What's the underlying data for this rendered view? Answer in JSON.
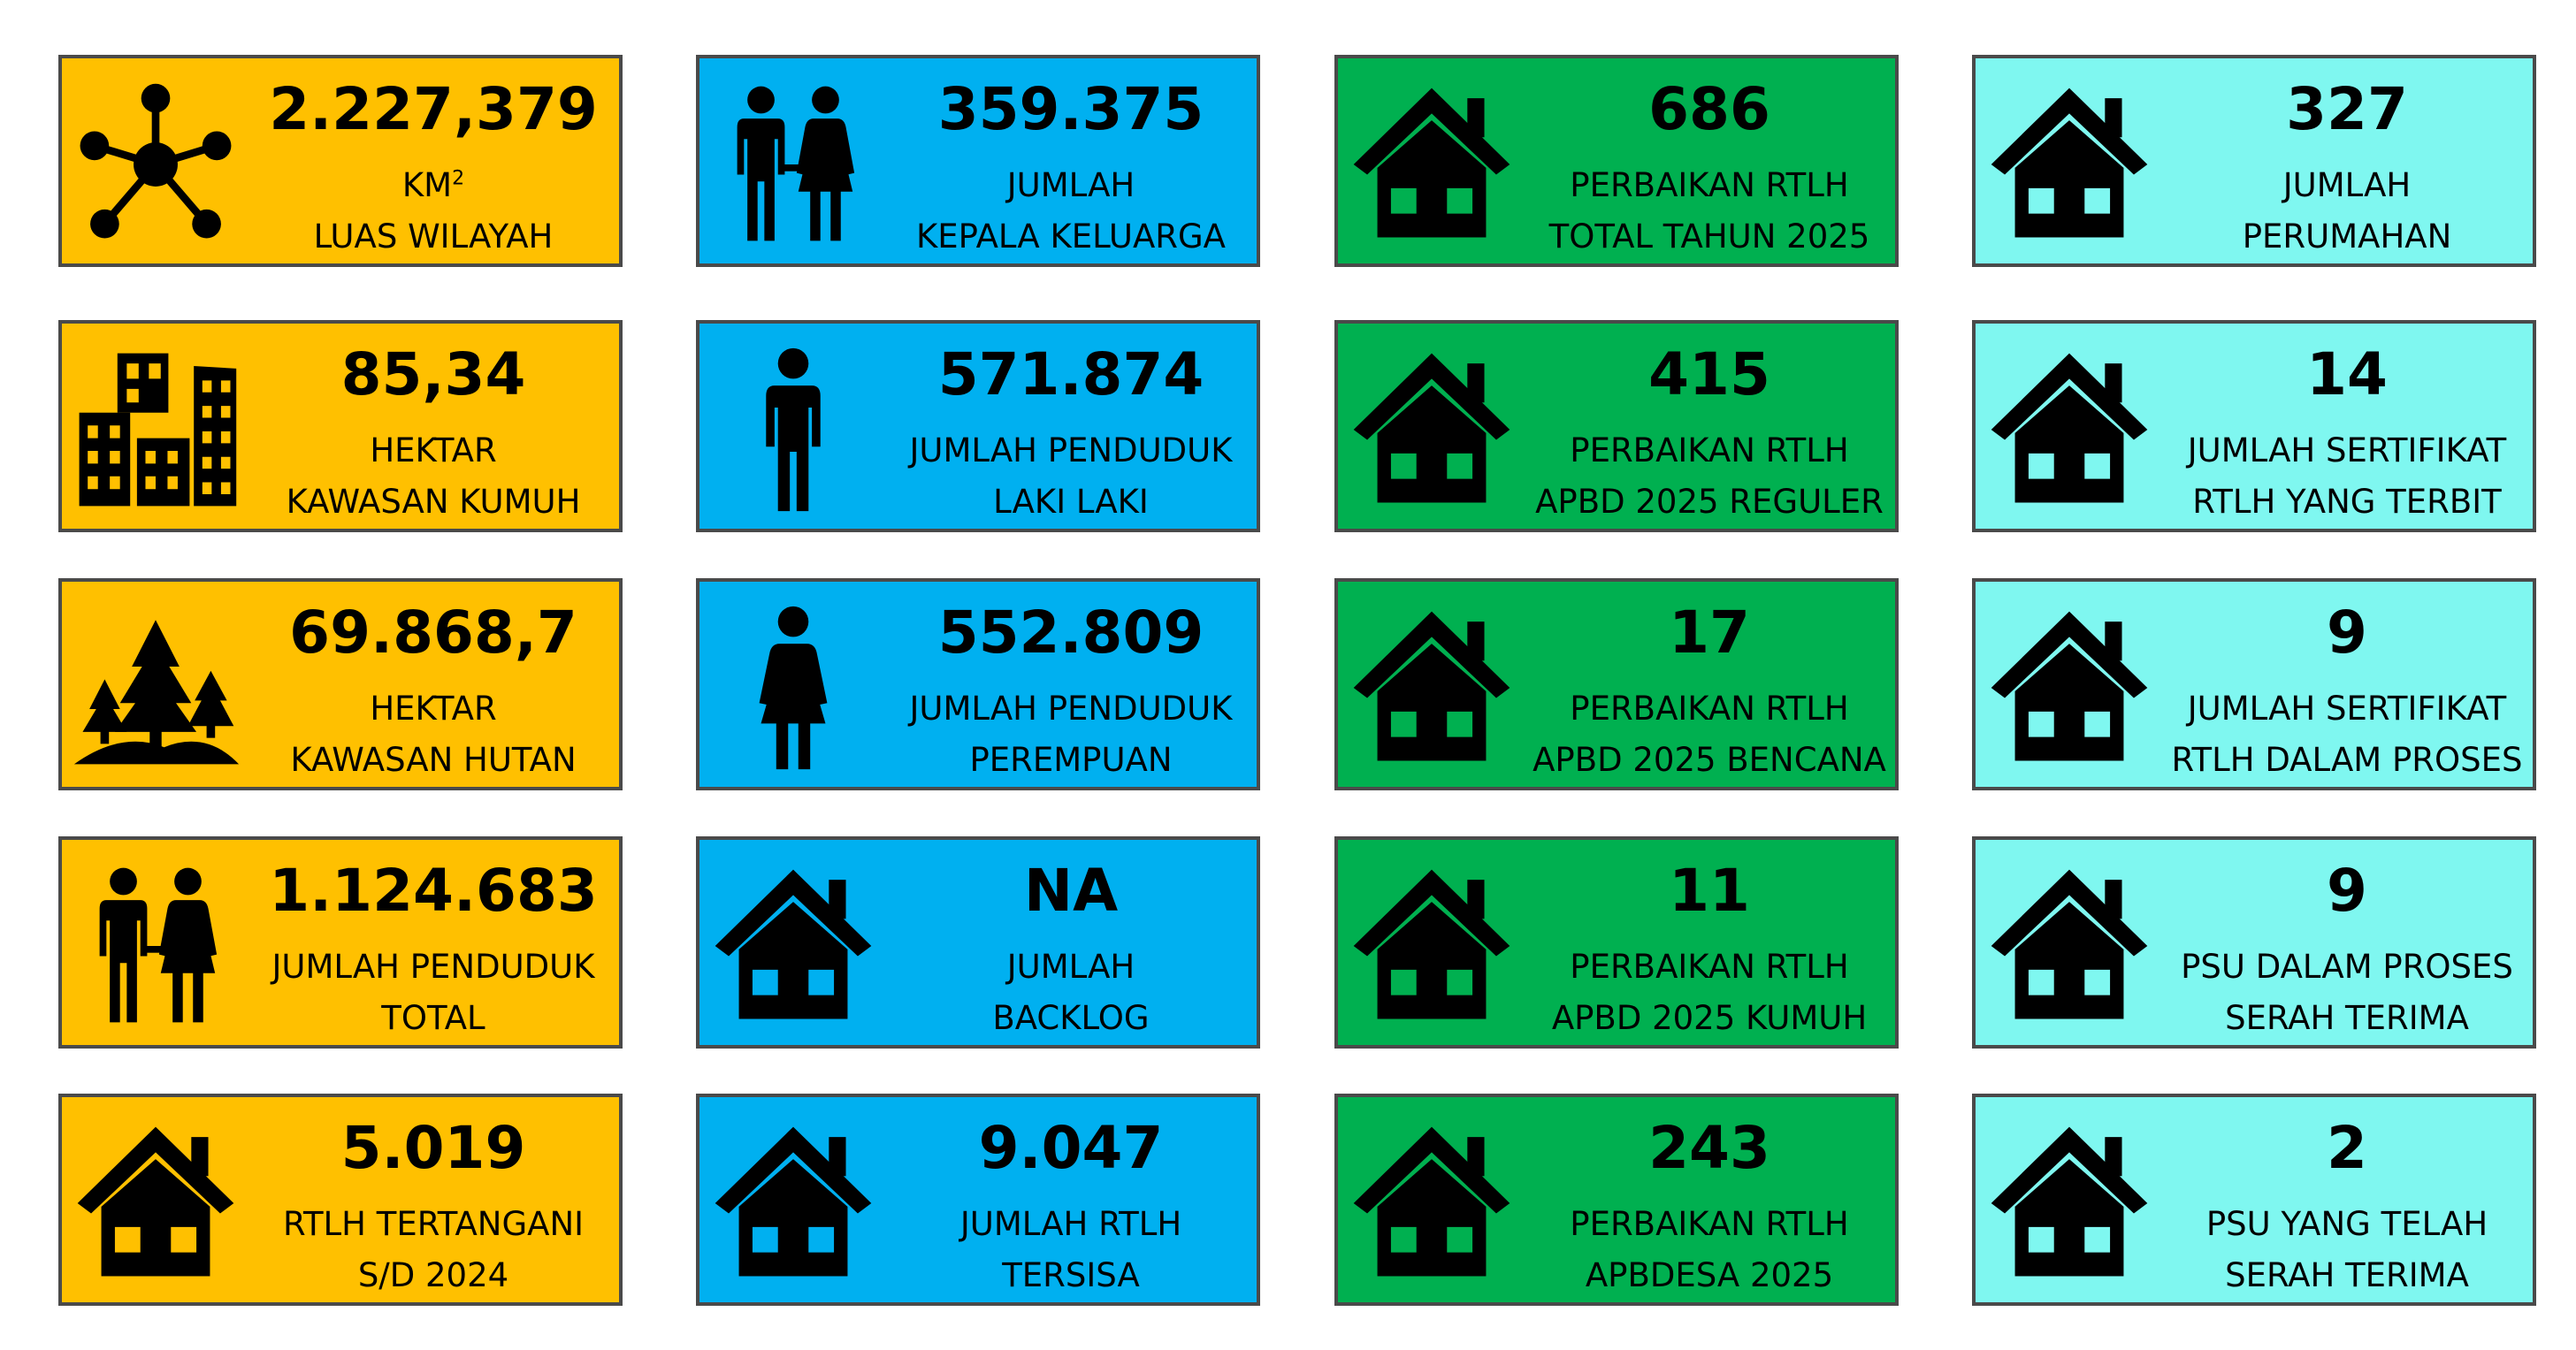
{
  "colors": {
    "orange": "#FFC000",
    "blue": "#00B0F0",
    "green": "#00B050",
    "cyan": "#7FF7F0",
    "border": "#4a4a4a"
  },
  "columns": [
    {
      "color": "orange",
      "cards": [
        {
          "icon": "network-icon",
          "value": "2.227,379",
          "line1": "KM",
          "line1_sup": "2",
          "line2": "LUAS WILAYAH"
        },
        {
          "icon": "buildings-icon",
          "value": "85,34",
          "line1": "HEKTAR",
          "line2": "KAWASAN KUMUH"
        },
        {
          "icon": "forest-icon",
          "value": "69.868,7",
          "line1": "HEKTAR",
          "line2": "KAWASAN HUTAN"
        },
        {
          "icon": "couple-icon",
          "value": "1.124.683",
          "line1": "JUMLAH PENDUDUK",
          "line2": "TOTAL"
        },
        {
          "icon": "house-icon",
          "value": "5.019",
          "line1": "RTLH TERTANGANI",
          "line2": "S/D 2024"
        }
      ]
    },
    {
      "color": "blue",
      "cards": [
        {
          "icon": "couple-icon",
          "value": "359.375",
          "line1": "JUMLAH",
          "line2": "KEPALA KELUARGA"
        },
        {
          "icon": "man-icon",
          "value": "571.874",
          "line1": "JUMLAH PENDUDUK",
          "line2": "LAKI LAKI"
        },
        {
          "icon": "woman-icon",
          "value": "552.809",
          "line1": "JUMLAH PENDUDUK",
          "line2": "PEREMPUAN"
        },
        {
          "icon": "house-icon",
          "value": "NA",
          "line1": "JUMLAH",
          "line2": "BACKLOG"
        },
        {
          "icon": "house-icon",
          "value": "9.047",
          "line1": "JUMLAH RTLH",
          "line2": "TERSISA"
        }
      ]
    },
    {
      "color": "green",
      "cards": [
        {
          "icon": "house-icon",
          "value": "686",
          "line1": "PERBAIKAN RTLH",
          "line2": "TOTAL TAHUN 2025"
        },
        {
          "icon": "house-icon",
          "value": "415",
          "line1": "PERBAIKAN RTLH",
          "line2": "APBD 2025 REGULER"
        },
        {
          "icon": "house-icon",
          "value": "17",
          "line1": "PERBAIKAN RTLH",
          "line2": "APBD 2025 BENCANA"
        },
        {
          "icon": "house-icon",
          "value": "11",
          "line1": "PERBAIKAN RTLH",
          "line2": "APBD 2025 KUMUH"
        },
        {
          "icon": "house-icon",
          "value": "243",
          "line1": "PERBAIKAN RTLH",
          "line2": "APBDESA 2025"
        }
      ]
    },
    {
      "color": "cyan",
      "cards": [
        {
          "icon": "house-icon",
          "value": "327",
          "line1": "JUMLAH",
          "line2": "PERUMAHAN"
        },
        {
          "icon": "house-icon",
          "value": "14",
          "line1": "JUMLAH SERTIFIKAT",
          "line2": "RTLH YANG TERBIT"
        },
        {
          "icon": "house-icon",
          "value": "9",
          "line1": "JUMLAH SERTIFIKAT",
          "line2": "RTLH DALAM PROSES"
        },
        {
          "icon": "house-icon",
          "value": "9",
          "line1": "PSU DALAM PROSES",
          "line2": "SERAH TERIMA"
        },
        {
          "icon": "house-icon",
          "value": "2",
          "line1": "PSU YANG TELAH",
          "line2": "SERAH TERIMA"
        }
      ]
    }
  ]
}
